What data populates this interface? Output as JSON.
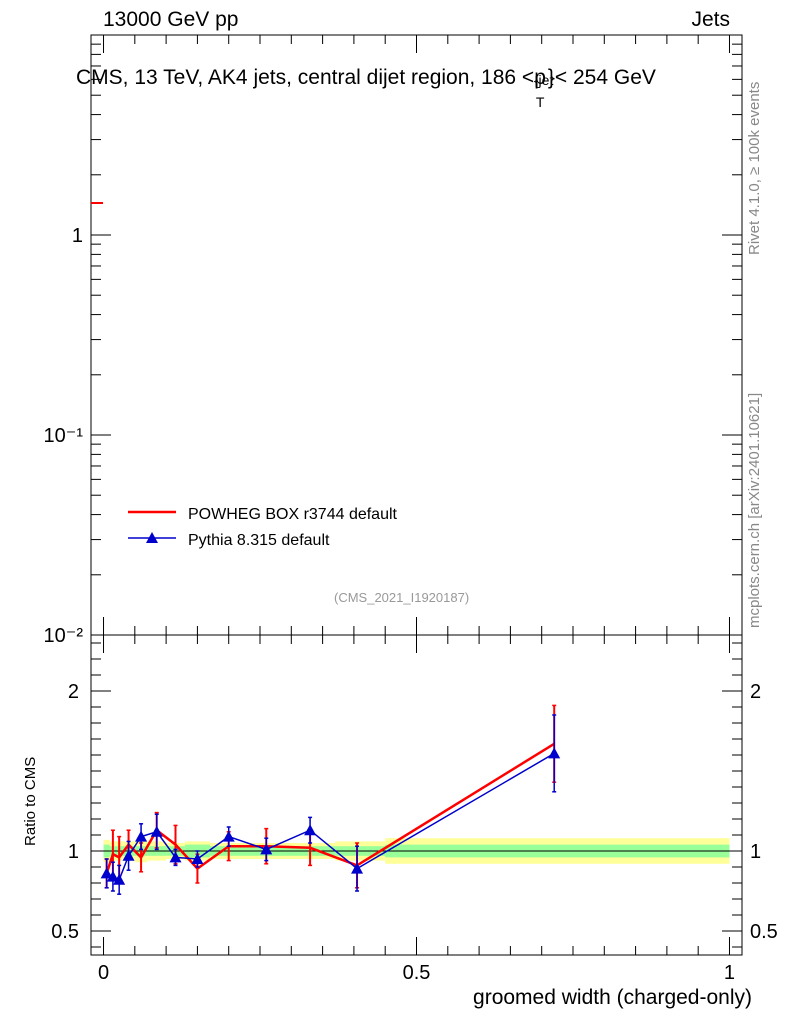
{
  "header": {
    "left": "13000 GeV pp",
    "right": "Jets"
  },
  "side_labels": {
    "rivet": "Rivet 4.1.0, ≥ 100k events",
    "mcplots": "mcplots.cern.ch [arXiv:2401.10621]"
  },
  "watermark": "(CMS_2021_I1920187)",
  "legend": {
    "powheg": "POWHEG BOX r3744 default",
    "pythia": "Pythia 8.315 default"
  },
  "colors": {
    "powheg": "#ff0000",
    "pythia": "#0000cc",
    "band_inner": "#99ff99",
    "band_outer": "#ffff99"
  },
  "chart_data": [
    {
      "type": "line",
      "panel": "main",
      "title": "CMS, 13 TeV, AK4 jets, central dijet region, 186 < p_T^{jet} < 254 GeV",
      "title_parts": {
        "main": "CMS, 13 TeV, AK4 jets, central dijet region, 186 <p",
        "sup": "{jet",
        "sub": "T",
        "tail": "}< 254 GeV"
      },
      "yscale": "log",
      "ylim": [
        0.01,
        10
      ],
      "yticks": [
        0.01,
        0.1,
        1
      ],
      "ytick_labels": [
        "10⁻²",
        "10⁻¹",
        "1"
      ],
      "note": "main panel shows no visible data curves"
    },
    {
      "type": "line",
      "panel": "ratio",
      "xlabel": "groomed width (charged-only)",
      "ylabel": "Ratio to CMS",
      "xlim": [
        -0.02,
        1.02
      ],
      "ylim": [
        0.35,
        2.35
      ],
      "xticks": [
        0,
        0.5,
        1
      ],
      "xtick_labels": [
        "0",
        "0.5",
        "1"
      ],
      "yticks": [
        0.5,
        1,
        2
      ],
      "ytick_labels": [
        "0.5",
        "1",
        "2"
      ],
      "reference_line": 1.0,
      "bands": [
        {
          "xlo": 0.0,
          "xhi": 0.01,
          "inner": [
            0.96,
            1.04
          ],
          "outer": [
            0.93,
            1.07
          ]
        },
        {
          "xlo": 0.01,
          "xhi": 0.02,
          "inner": [
            0.97,
            1.03
          ],
          "outer": [
            0.94,
            1.06
          ]
        },
        {
          "xlo": 0.02,
          "xhi": 0.03,
          "inner": [
            0.97,
            1.03
          ],
          "outer": [
            0.94,
            1.06
          ]
        },
        {
          "xlo": 0.03,
          "xhi": 0.05,
          "inner": [
            0.97,
            1.03
          ],
          "outer": [
            0.94,
            1.06
          ]
        },
        {
          "xlo": 0.05,
          "xhi": 0.07,
          "inner": [
            0.97,
            1.03
          ],
          "outer": [
            0.93,
            1.07
          ]
        },
        {
          "xlo": 0.07,
          "xhi": 0.1,
          "inner": [
            0.97,
            1.03
          ],
          "outer": [
            0.94,
            1.06
          ]
        },
        {
          "xlo": 0.1,
          "xhi": 0.13,
          "inner": [
            0.97,
            1.03
          ],
          "outer": [
            0.95,
            1.05
          ]
        },
        {
          "xlo": 0.13,
          "xhi": 0.17,
          "inner": [
            0.96,
            1.04
          ],
          "outer": [
            0.94,
            1.06
          ]
        },
        {
          "xlo": 0.17,
          "xhi": 0.23,
          "inner": [
            0.97,
            1.03
          ],
          "outer": [
            0.95,
            1.05
          ]
        },
        {
          "xlo": 0.23,
          "xhi": 0.29,
          "inner": [
            0.97,
            1.03
          ],
          "outer": [
            0.95,
            1.05
          ]
        },
        {
          "xlo": 0.29,
          "xhi": 0.37,
          "inner": [
            0.97,
            1.03
          ],
          "outer": [
            0.95,
            1.05
          ]
        },
        {
          "xlo": 0.37,
          "xhi": 0.45,
          "inner": [
            0.97,
            1.03
          ],
          "outer": [
            0.94,
            1.06
          ]
        },
        {
          "xlo": 0.45,
          "xhi": 1.0,
          "inner": [
            0.96,
            1.04
          ],
          "outer": [
            0.92,
            1.08
          ]
        }
      ],
      "series": [
        {
          "name": "POWHEG BOX r3744 default",
          "color": "#ff0000",
          "marker": "none",
          "x": [
            0.005,
            0.015,
            0.025,
            0.04,
            0.06,
            0.085,
            0.115,
            0.15,
            0.2,
            0.26,
            0.33,
            0.405,
            0.72
          ],
          "y": [
            0.86,
            0.98,
            0.96,
            1.04,
            0.96,
            1.13,
            1.04,
            0.89,
            1.03,
            1.03,
            1.02,
            0.91,
            1.67
          ],
          "err": [
            0.09,
            0.15,
            0.13,
            0.09,
            0.09,
            0.11,
            0.12,
            0.09,
            0.09,
            0.11,
            0.11,
            0.14,
            0.24
          ]
        },
        {
          "name": "Pythia 8.315 default",
          "color": "#0000cc",
          "marker": "triangle",
          "x": [
            0.005,
            0.015,
            0.025,
            0.04,
            0.06,
            0.085,
            0.115,
            0.15,
            0.2,
            0.26,
            0.33,
            0.405,
            0.72
          ],
          "y": [
            0.86,
            0.84,
            0.82,
            0.97,
            1.09,
            1.12,
            0.96,
            0.95,
            1.09,
            1.01,
            1.13,
            0.89,
            1.61
          ],
          "err": [
            0.09,
            0.09,
            0.09,
            0.09,
            0.08,
            0.11,
            0.05,
            0.05,
            0.06,
            0.07,
            0.08,
            0.14,
            0.24
          ]
        }
      ]
    }
  ]
}
